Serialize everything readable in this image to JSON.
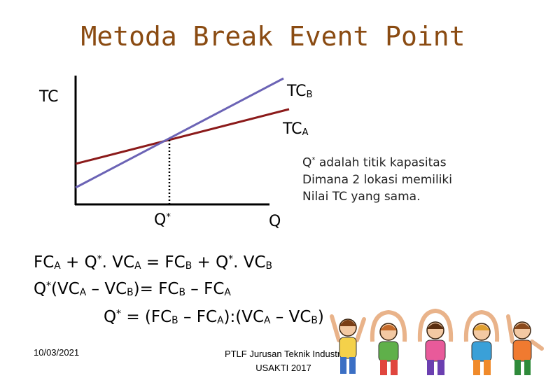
{
  "slide": {
    "title": "Metoda Break Event Point",
    "graph": {
      "y_label": "TC",
      "line_b_label": {
        "main": "TC",
        "sub": "B"
      },
      "line_a_label": {
        "main": "TC",
        "sub": "A"
      },
      "q_star_label": {
        "main": "Q",
        "sup": "*"
      },
      "x_label": "Q",
      "line_a_color": "#8b1a1a",
      "line_b_color": "#6b63b5"
    },
    "note_lines": [
      {
        "pre": "Q",
        "sup": "*",
        "post": " adalah titik kapasitas"
      },
      {
        "pre": "Dimana 2 lokasi memiliki"
      },
      {
        "pre": "Nilai TC yang sama."
      }
    ],
    "equations": {
      "eq1": {
        "a": "FC",
        "a_sub": "A",
        "b": " + Q",
        "b_sup": "*",
        "c": ". VC",
        "c_sub": "A",
        "d": " = FC",
        "d_sub": "B",
        "e": " + Q",
        "e_sup": "*",
        "f": ". VC",
        "f_sub": "B"
      },
      "eq2": {
        "a": "Q",
        "a_sup": "*",
        "b": "(VC",
        "b_sub": "A",
        "c": " – VC",
        "c_sub": "B",
        "d": ")= FC",
        "d_sub": "B",
        "e": " – FC",
        "e_sub": "A"
      },
      "eq3": {
        "a": "Q",
        "a_sup": "*",
        "b": " = (FC",
        "b_sub": "B",
        "c": " – FC",
        "c_sub": "A",
        "d": "):(VC",
        "d_sub": "A",
        "e": " – VC",
        "e_sub": "B",
        "f": ")"
      }
    },
    "date": "10/03/2021",
    "footer_lines": [
      "PTLF Jurusan Teknik Industri",
      "USAKTI 2017"
    ]
  }
}
